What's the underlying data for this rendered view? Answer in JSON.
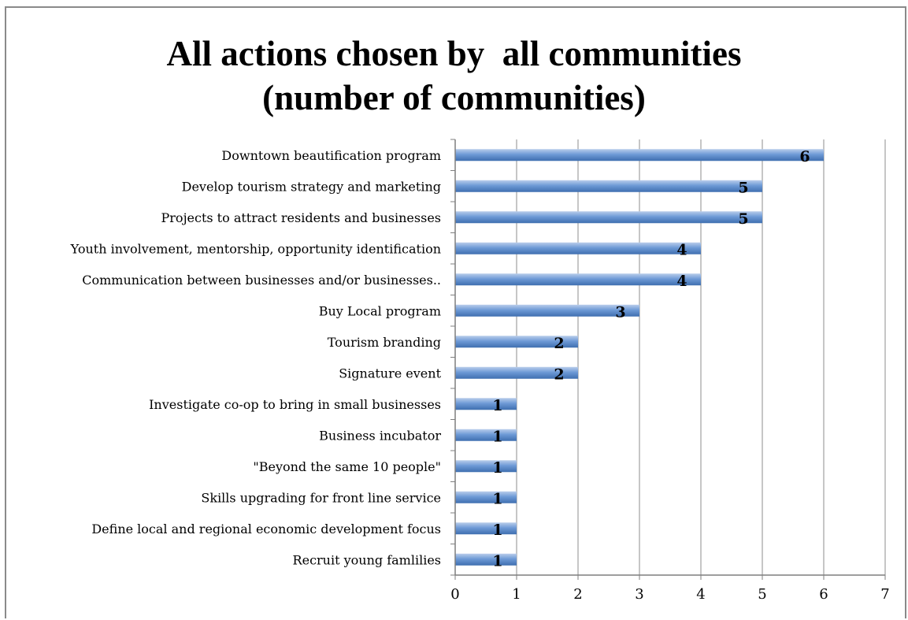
{
  "chart_data": {
    "type": "bar",
    "orientation": "horizontal",
    "title_lines": [
      "All actions chosen by  all communities",
      "(number of communities)"
    ],
    "categories": [
      "Downtown beautification program",
      "Develop tourism strategy and marketing",
      "Projects to attract residents and businesses",
      "Youth involvement, mentorship, opportunity identification",
      "Communication between businesses and/or businesses..",
      "Buy Local program",
      "Tourism branding",
      "Signature event",
      "Investigate co-op to bring in small businesses",
      "Business incubator",
      "\"Beyond the same 10 people\"",
      "Skills upgrading for front line service",
      "Define local and regional economic development focus",
      "Recruit young famlilies"
    ],
    "values": [
      6,
      5,
      5,
      4,
      4,
      3,
      2,
      2,
      1,
      1,
      1,
      1,
      1,
      1
    ],
    "xlim": [
      0,
      7
    ],
    "xticks": [
      "0",
      "1",
      "2",
      "3",
      "4",
      "5",
      "6",
      "7"
    ],
    "grid": true,
    "data_labels": true,
    "legend": "none",
    "colors": {
      "bar": "#4f81bd",
      "bar_light": "#b9cdeb",
      "grid": "#8c8c8c"
    }
  }
}
